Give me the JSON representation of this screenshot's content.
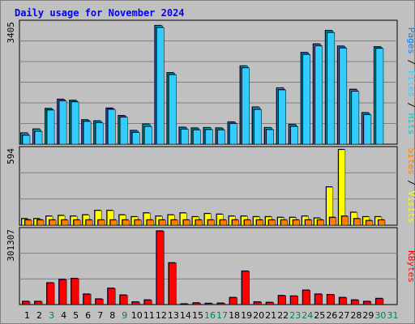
{
  "title": "Daily usage for November 2024",
  "chart_data": [
    {
      "type": "bar",
      "panel": "hits-files-pages",
      "y_scale_label": "3405",
      "ylim": [
        0,
        3405
      ],
      "series": [
        {
          "name": "Hits",
          "color": "#00cccc",
          "values": [
            310,
            420,
            1000,
            1260,
            1230,
            680,
            650,
            1010,
            800,
            380,
            560,
            3340,
            2010,
            470,
            450,
            460,
            450,
            620,
            2200,
            1040,
            460,
            1580,
            550,
            2580,
            2820,
            3200,
            2760,
            1540,
            880,
            2740
          ]
        },
        {
          "name": "Files",
          "color": "#33ccff",
          "values": [
            250,
            360,
            960,
            1220,
            1190,
            640,
            600,
            980,
            760,
            330,
            500,
            3290,
            1960,
            420,
            400,
            410,
            400,
            580,
            2150,
            980,
            410,
            1530,
            500,
            2530,
            2770,
            3150,
            2710,
            1490,
            830,
            2700
          ]
        },
        {
          "name": "Pages",
          "color": "#0080ff",
          "values": [
            0,
            0,
            0,
            0,
            0,
            0,
            0,
            0,
            0,
            0,
            0,
            0,
            0,
            0,
            0,
            0,
            0,
            0,
            0,
            0,
            0,
            0,
            0,
            0,
            0,
            0,
            0,
            0,
            0,
            0
          ]
        }
      ],
      "legend": [
        "Pages",
        "Files",
        "Hits"
      ]
    },
    {
      "type": "bar",
      "panel": "visits-sites",
      "y_scale_label": "594",
      "ylim": [
        0,
        594
      ],
      "series": [
        {
          "name": "Visits",
          "color": "#ffff00",
          "values": [
            50,
            50,
            70,
            75,
            70,
            80,
            115,
            115,
            80,
            65,
            95,
            70,
            80,
            95,
            65,
            90,
            85,
            70,
            70,
            65,
            65,
            60,
            60,
            70,
            55,
            300,
            595,
            100,
            65,
            65
          ]
        },
        {
          "name": "Sites",
          "color": "#ff8000",
          "values": [
            40,
            40,
            40,
            40,
            40,
            40,
            40,
            40,
            40,
            40,
            40,
            40,
            40,
            40,
            40,
            40,
            40,
            40,
            40,
            40,
            40,
            40,
            40,
            40,
            40,
            60,
            70,
            50,
            35,
            40
          ]
        }
      ],
      "legend": [
        "Sites",
        "Visits"
      ]
    },
    {
      "type": "bar",
      "panel": "kbytes",
      "y_scale_label": "301307",
      "ylim": [
        0,
        301307
      ],
      "series": [
        {
          "name": "KBytes",
          "color": "#ff0000",
          "values": [
            12000,
            12000,
            88000,
            102000,
            106000,
            42000,
            22000,
            66000,
            38000,
            10000,
            18000,
            300000,
            170000,
            2000,
            6000,
            4000,
            5000,
            28000,
            136000,
            10000,
            8000,
            36000,
            34000,
            58000,
            42000,
            40000,
            28000,
            18000,
            12000,
            24000
          ]
        }
      ],
      "legend": [
        "KBytes"
      ]
    }
  ],
  "days": {
    "labels": [
      "1",
      "2",
      "3",
      "4",
      "5",
      "6",
      "7",
      "8",
      "9",
      "10",
      "11",
      "12",
      "13",
      "14",
      "15",
      "16",
      "17",
      "18",
      "19",
      "20",
      "21",
      "22",
      "23",
      "24",
      "25",
      "26",
      "27",
      "28",
      "29",
      "30",
      "31"
    ],
    "weekend_color": "#00805c",
    "weekday_color": "#000000",
    "weekend": [
      false,
      false,
      true,
      false,
      false,
      false,
      false,
      false,
      true,
      false,
      false,
      false,
      false,
      false,
      false,
      true,
      true,
      false,
      false,
      false,
      false,
      false,
      true,
      true,
      false,
      false,
      false,
      false,
      false,
      true,
      true
    ]
  }
}
